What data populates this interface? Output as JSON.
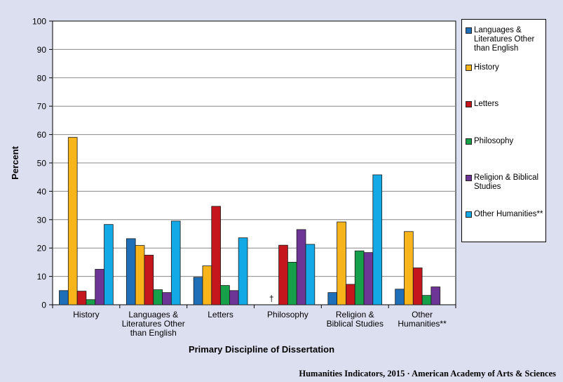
{
  "chart_data": {
    "type": "bar",
    "ylabel": "Percent",
    "xlabel": "Primary Discipline of Dissertation",
    "ylim": [
      0,
      100
    ],
    "yticks": [
      0,
      10,
      20,
      30,
      40,
      50,
      60,
      70,
      80,
      90,
      100
    ],
    "grid": "horizontal",
    "legend_position": "right",
    "categories": [
      [
        "History"
      ],
      [
        "Languages &",
        "Literatures Other",
        "than English"
      ],
      [
        "Letters"
      ],
      [
        "Philosophy"
      ],
      [
        "Religion &",
        "Biblical Studies"
      ],
      [
        "Other",
        "Humanities**"
      ]
    ],
    "series": [
      {
        "name": "Languages & Literatures Other than English",
        "color": "#1f6fb8",
        "values": [
          5.0,
          23.3,
          9.7,
          null,
          4.3,
          5.5
        ]
      },
      {
        "name": "History",
        "color": "#f7b51b",
        "values": [
          59.0,
          20.9,
          13.7,
          null,
          29.2,
          25.8
        ]
      },
      {
        "name": "Letters",
        "color": "#c4161c",
        "values": [
          4.8,
          17.5,
          34.7,
          21.0,
          7.2,
          13.0
        ]
      },
      {
        "name": "Philosophy",
        "color": "#17a04a",
        "values": [
          1.8,
          5.3,
          6.8,
          15.0,
          19.0,
          3.3
        ]
      },
      {
        "name": "Religion & Biblical Studies",
        "color": "#6d3596",
        "values": [
          12.5,
          4.3,
          5.0,
          26.5,
          18.4,
          6.3
        ]
      },
      {
        "name": "Other Humanities**",
        "color": "#12a9e6",
        "values": [
          28.3,
          29.5,
          23.6,
          21.3,
          45.8,
          null
        ]
      }
    ],
    "annotations": [
      {
        "category_index": 3,
        "series_index": 1,
        "text": "†"
      }
    ]
  },
  "legend": {
    "items": [
      {
        "lines": [
          "Languages &",
          "Literatures Other",
          "than English"
        ],
        "color": "#1f6fb8"
      },
      {
        "lines": [
          "History"
        ],
        "color": "#f7b51b"
      },
      {
        "lines": [
          "Letters"
        ],
        "color": "#c4161c"
      },
      {
        "lines": [
          "Philosophy"
        ],
        "color": "#17a04a"
      },
      {
        "lines": [
          "Religion & Biblical",
          "Studies"
        ],
        "color": "#6d3596"
      },
      {
        "lines": [
          "Other Humanities**"
        ],
        "color": "#12a9e6"
      }
    ]
  },
  "credit": "Humanities Indicators, 2015 · American Academy of Arts & Sciences"
}
